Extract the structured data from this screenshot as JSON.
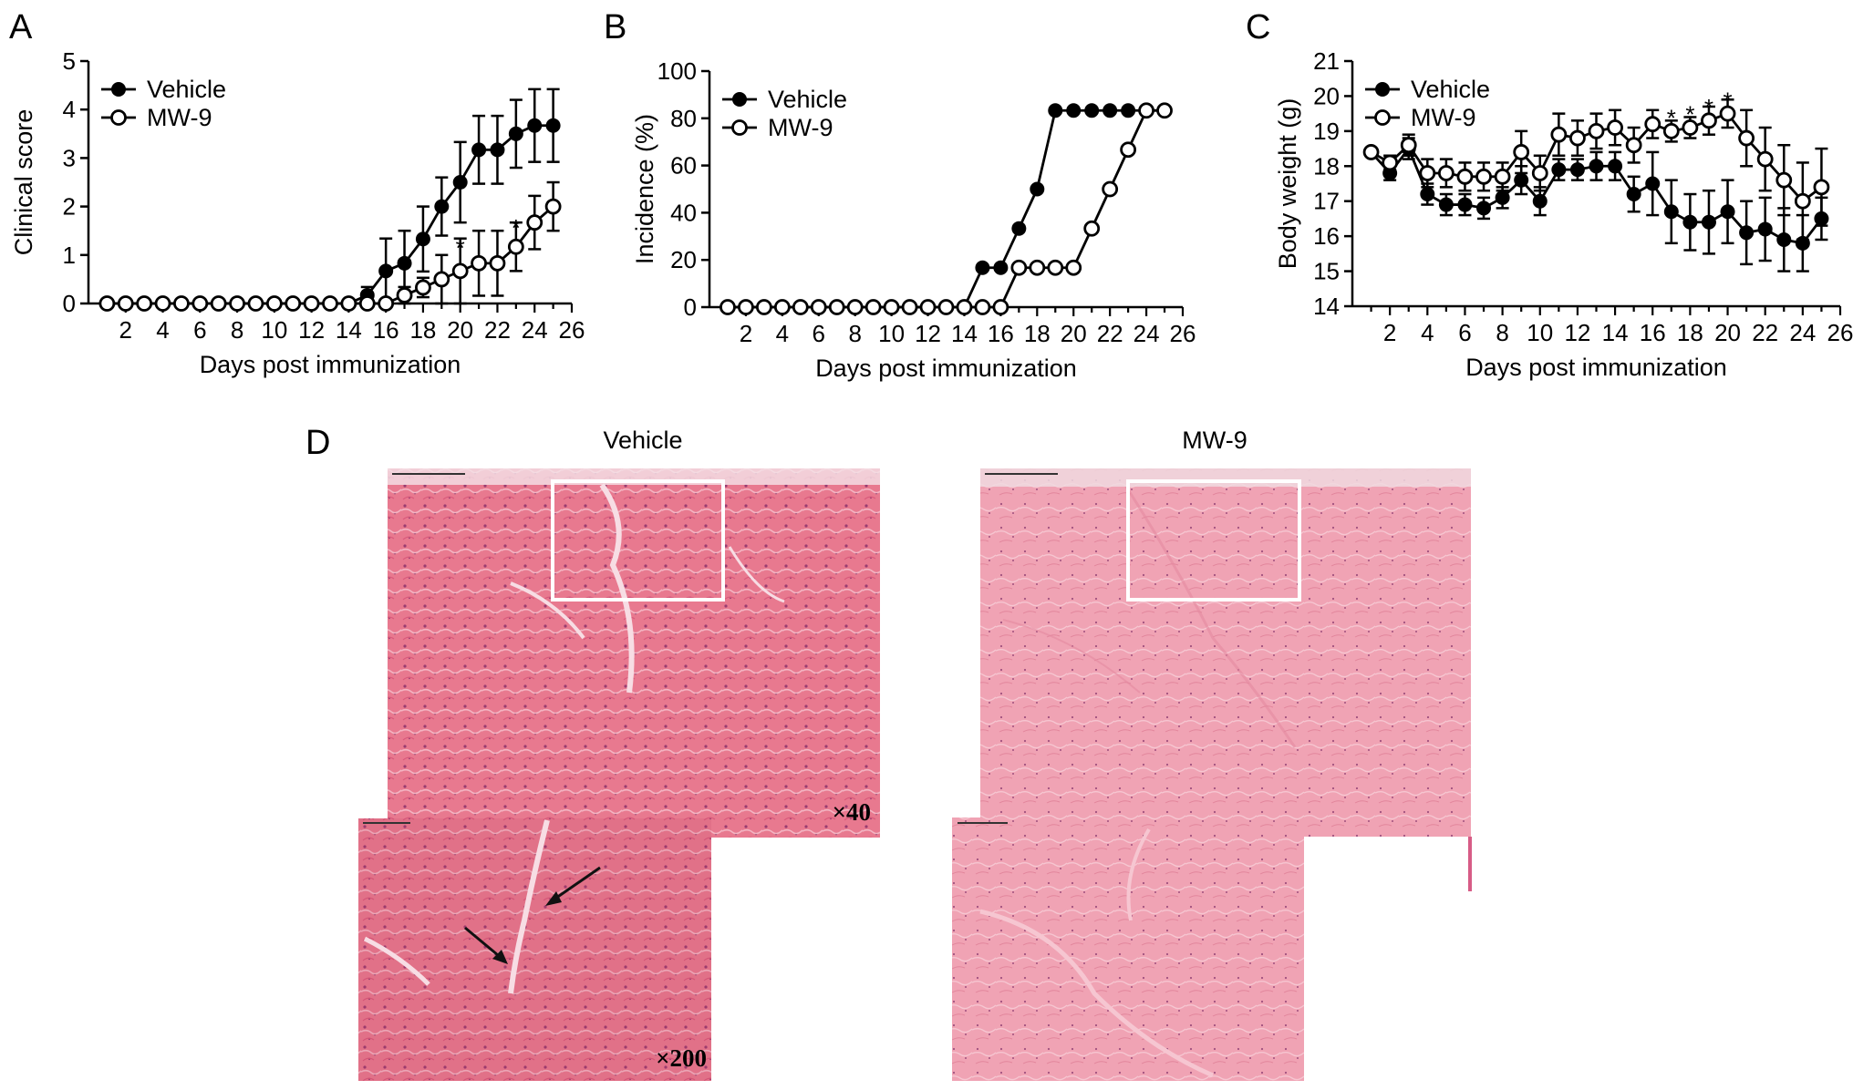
{
  "panels": {
    "A": "A",
    "B": "B",
    "C": "C",
    "D": "D"
  },
  "histology": {
    "vehicle_label": "Vehicle",
    "mw9_label": "MW-9",
    "mag_low": "×40",
    "mag_high": "×200",
    "colors": {
      "stain_dark": "#d8506e",
      "stain_light": "#f1a9b8",
      "stain_pale": "#f4bfca",
      "box": "#ffffff"
    }
  },
  "chart_data": [
    {
      "type": "line",
      "panel": "A",
      "ylabel": "Clinical score",
      "xlabel": "Days post immunization",
      "xlim": [
        0,
        26
      ],
      "ylim": [
        0,
        5
      ],
      "xticks": [
        2,
        4,
        6,
        8,
        10,
        12,
        14,
        16,
        18,
        20,
        22,
        24,
        26
      ],
      "yticks": [
        0,
        1,
        2,
        3,
        4,
        5
      ],
      "legend": "top-left",
      "x": [
        1,
        2,
        3,
        4,
        5,
        6,
        7,
        8,
        9,
        10,
        11,
        12,
        13,
        14,
        15,
        16,
        17,
        18,
        19,
        20,
        21,
        22,
        23,
        24,
        25
      ],
      "series": [
        {
          "name": "Vehicle",
          "marker": "filled",
          "values": [
            0,
            0,
            0,
            0,
            0,
            0,
            0,
            0,
            0,
            0,
            0,
            0,
            0,
            0,
            0.17,
            0.67,
            0.83,
            1.33,
            2.0,
            2.5,
            3.17,
            3.17,
            3.5,
            3.67,
            3.67
          ],
          "errors": [
            0,
            0,
            0,
            0,
            0,
            0,
            0,
            0,
            0,
            0,
            0,
            0,
            0,
            0,
            0.17,
            0.67,
            0.67,
            0.67,
            0.6,
            0.83,
            0.7,
            0.7,
            0.7,
            0.75,
            0.75
          ]
        },
        {
          "name": "MW-9",
          "marker": "open",
          "values": [
            0,
            0,
            0,
            0,
            0,
            0,
            0,
            0,
            0,
            0,
            0,
            0,
            0,
            0,
            0,
            0,
            0.17,
            0.33,
            0.5,
            0.67,
            0.83,
            0.83,
            1.17,
            1.67,
            2.0
          ],
          "errors": [
            0,
            0,
            0,
            0,
            0,
            0,
            0,
            0,
            0,
            0,
            0,
            0,
            0,
            0,
            0,
            0,
            0.17,
            0.2,
            0.5,
            0.67,
            0.67,
            0.67,
            0.5,
            0.55,
            0.5
          ]
        }
      ],
      "significance": [
        {
          "x": 20,
          "y": 1.2,
          "text": "*"
        },
        {
          "x": 23,
          "y": 1.62,
          "text": "*"
        }
      ]
    },
    {
      "type": "line",
      "panel": "B",
      "ylabel": "Incidence (%)",
      "xlabel": "Days post immunization",
      "xlim": [
        0,
        26
      ],
      "ylim": [
        0,
        100
      ],
      "xticks": [
        2,
        4,
        6,
        8,
        10,
        12,
        14,
        16,
        18,
        20,
        22,
        24,
        26
      ],
      "yticks": [
        0,
        20,
        40,
        60,
        80,
        100
      ],
      "legend": "top-left",
      "x": [
        1,
        2,
        3,
        4,
        5,
        6,
        7,
        8,
        9,
        10,
        11,
        12,
        13,
        14,
        15,
        16,
        17,
        18,
        19,
        20,
        21,
        22,
        23,
        24,
        25
      ],
      "series": [
        {
          "name": "Vehicle",
          "marker": "filled",
          "values": [
            0,
            0,
            0,
            0,
            0,
            0,
            0,
            0,
            0,
            0,
            0,
            0,
            0,
            0,
            16.7,
            16.7,
            33.3,
            50,
            83.3,
            83.3,
            83.3,
            83.3,
            83.3,
            83.3,
            83.3
          ]
        },
        {
          "name": "MW-9",
          "marker": "open",
          "values": [
            0,
            0,
            0,
            0,
            0,
            0,
            0,
            0,
            0,
            0,
            0,
            0,
            0,
            0,
            0,
            0,
            16.7,
            16.7,
            16.7,
            16.7,
            33.3,
            50,
            66.7,
            83.3,
            83.3
          ]
        }
      ]
    },
    {
      "type": "line",
      "panel": "C",
      "ylabel": "Body weight (g)",
      "xlabel": "Days post immunization",
      "xlim": [
        0,
        26
      ],
      "ylim": [
        14,
        21
      ],
      "xticks": [
        2,
        4,
        6,
        8,
        10,
        12,
        14,
        16,
        18,
        20,
        22,
        24,
        26
      ],
      "yticks": [
        14,
        15,
        16,
        17,
        18,
        19,
        20,
        21
      ],
      "legend": "top-left",
      "x": [
        1,
        2,
        3,
        4,
        5,
        6,
        7,
        8,
        9,
        10,
        11,
        12,
        13,
        14,
        15,
        16,
        17,
        18,
        19,
        20,
        21,
        22,
        23,
        24,
        25
      ],
      "series": [
        {
          "name": "Vehicle",
          "marker": "filled",
          "values": [
            18.4,
            17.8,
            18.5,
            17.2,
            16.9,
            16.9,
            16.8,
            17.1,
            17.6,
            17.0,
            17.9,
            17.9,
            18.0,
            18.0,
            17.2,
            17.5,
            16.7,
            16.4,
            16.4,
            16.7,
            16.1,
            16.2,
            15.9,
            15.8,
            16.5
          ],
          "errors": [
            0.1,
            0.2,
            0.3,
            0.3,
            0.3,
            0.3,
            0.3,
            0.3,
            0.4,
            0.4,
            0.3,
            0.3,
            0.4,
            0.4,
            0.5,
            0.9,
            0.9,
            0.8,
            0.9,
            0.9,
            0.9,
            0.9,
            0.9,
            0.8,
            0.6
          ]
        },
        {
          "name": "MW-9",
          "marker": "open",
          "values": [
            18.4,
            18.1,
            18.6,
            17.8,
            17.8,
            17.7,
            17.7,
            17.7,
            18.4,
            17.8,
            18.9,
            18.8,
            19.0,
            19.1,
            18.6,
            19.2,
            19.0,
            19.1,
            19.3,
            19.5,
            18.8,
            18.2,
            17.6,
            17.0,
            17.4
          ],
          "errors": [
            0.1,
            0.2,
            0.3,
            0.4,
            0.4,
            0.4,
            0.4,
            0.4,
            0.6,
            0.5,
            0.6,
            0.5,
            0.5,
            0.5,
            0.5,
            0.4,
            0.3,
            0.3,
            0.4,
            0.4,
            0.8,
            0.9,
            1.0,
            1.1,
            1.1
          ]
        }
      ],
      "significance": [
        {
          "x": 17,
          "y": 19.45,
          "text": "*"
        },
        {
          "x": 18,
          "y": 19.55,
          "text": "*"
        },
        {
          "x": 19,
          "y": 19.75,
          "text": "*"
        },
        {
          "x": 20,
          "y": 19.95,
          "text": "*"
        }
      ]
    }
  ]
}
